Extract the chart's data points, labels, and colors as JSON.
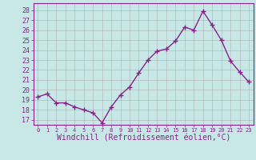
{
  "x": [
    0,
    1,
    2,
    3,
    4,
    5,
    6,
    7,
    8,
    9,
    10,
    11,
    12,
    13,
    14,
    15,
    16,
    17,
    18,
    19,
    20,
    21,
    22,
    23
  ],
  "y": [
    19.3,
    19.6,
    18.7,
    18.7,
    18.3,
    18.0,
    17.7,
    16.7,
    18.3,
    19.5,
    20.3,
    21.7,
    23.0,
    23.9,
    24.1,
    24.9,
    26.3,
    26.0,
    27.9,
    26.5,
    25.0,
    22.9,
    21.8,
    20.8
  ],
  "line_color": "#882288",
  "marker": "+",
  "markersize": 4,
  "linewidth": 1.0,
  "markeredgewidth": 1.0,
  "xlabel": "Windchill (Refroidissement éolien,°C)",
  "xlabel_fontsize": 7,
  "ytick_labels": [
    17,
    18,
    19,
    20,
    21,
    22,
    23,
    24,
    25,
    26,
    27,
    28
  ],
  "ylim": [
    16.5,
    28.7
  ],
  "xlim": [
    -0.5,
    23.5
  ],
  "xtick_labels": [
    "0",
    "1",
    "2",
    "3",
    "4",
    "5",
    "6",
    "7",
    "8",
    "9",
    "10",
    "11",
    "12",
    "13",
    "14",
    "15",
    "16",
    "17",
    "18",
    "19",
    "20",
    "21",
    "22",
    "23"
  ],
  "background_color": "#c8e8e8",
  "grid_color": "#aaaaaa",
  "tick_color": "#882288",
  "label_color": "#882288",
  "ytick_fontsize": 6,
  "xtick_fontsize": 5
}
